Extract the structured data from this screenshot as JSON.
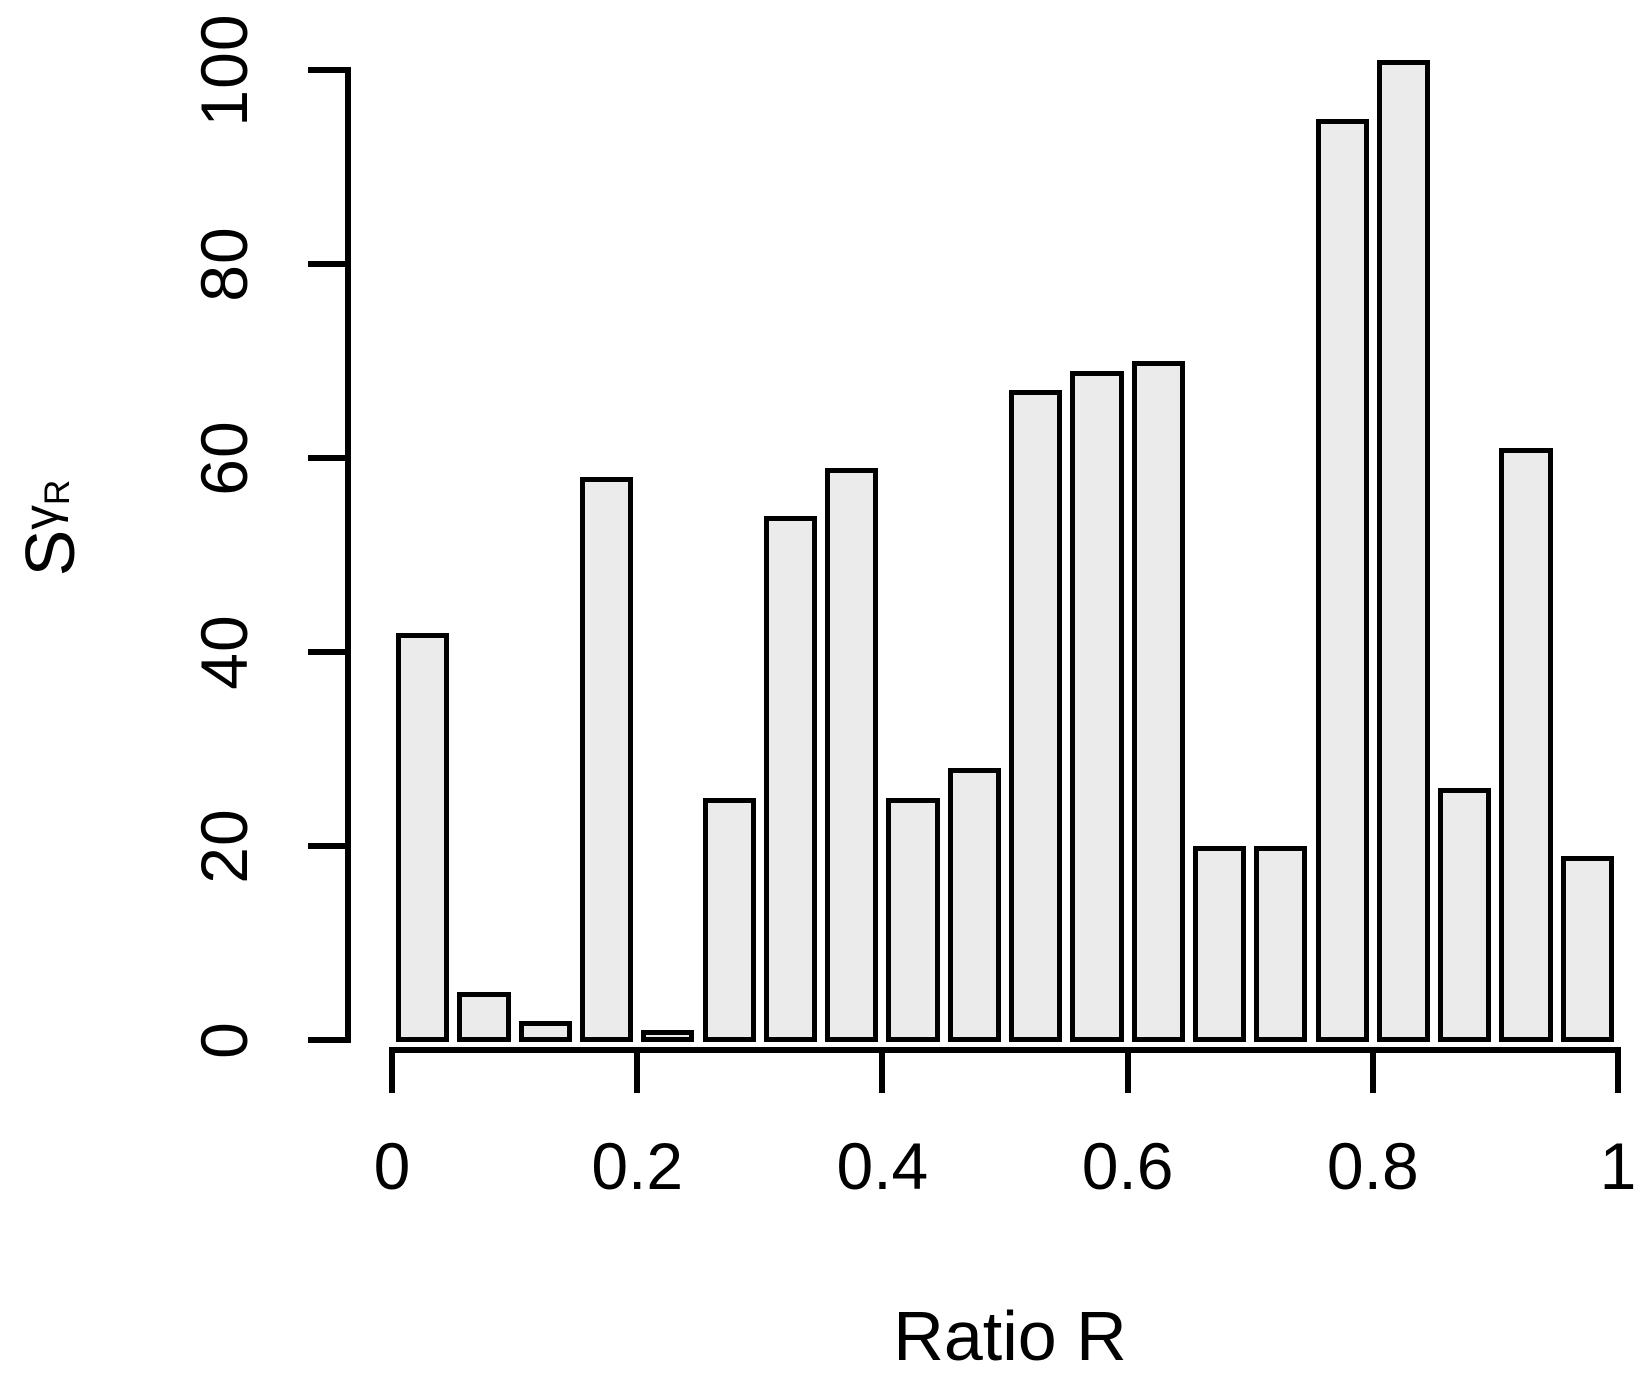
{
  "figure": {
    "background_color": "#ffffff",
    "axis_color": "#000000",
    "text_color": "#000000"
  },
  "chart_data": {
    "type": "bar",
    "title": "",
    "xlabel": "Ratio R",
    "ylabel_text": "SγR",
    "ylabel_main": "S",
    "ylabel_sub1": "γ",
    "ylabel_sub2": "R",
    "categories": [
      "0.00-0.05",
      "0.05-0.10",
      "0.10-0.15",
      "0.15-0.20",
      "0.20-0.25",
      "0.25-0.30",
      "0.30-0.35",
      "0.35-0.40",
      "0.40-0.45",
      "0.45-0.50",
      "0.50-0.55",
      "0.55-0.60",
      "0.60-0.65",
      "0.65-0.70",
      "0.70-0.75",
      "0.75-0.80",
      "0.80-0.85",
      "0.85-0.90",
      "0.90-0.95",
      "0.95-1.00"
    ],
    "values": [
      42,
      5,
      2,
      58,
      1,
      25,
      54,
      59,
      25,
      28,
      67,
      69,
      70,
      20,
      20,
      95,
      101,
      26,
      61,
      19
    ],
    "bin_width": 0.05,
    "xlim": [
      0,
      1
    ],
    "ylim": [
      0,
      100
    ],
    "x_tick_labels": [
      "0",
      "0.2",
      "0.4",
      "0.6",
      "0.8",
      "1"
    ],
    "x_tick_values": [
      0,
      0.2,
      0.4,
      0.6,
      0.8,
      1
    ],
    "y_tick_labels": [
      "0",
      "20",
      "40",
      "60",
      "80",
      "100"
    ],
    "y_tick_values": [
      0,
      20,
      40,
      60,
      80,
      100
    ],
    "bar_fill": "#ebebeb",
    "bar_border": "#000000",
    "grid": "off",
    "legend": "none"
  }
}
